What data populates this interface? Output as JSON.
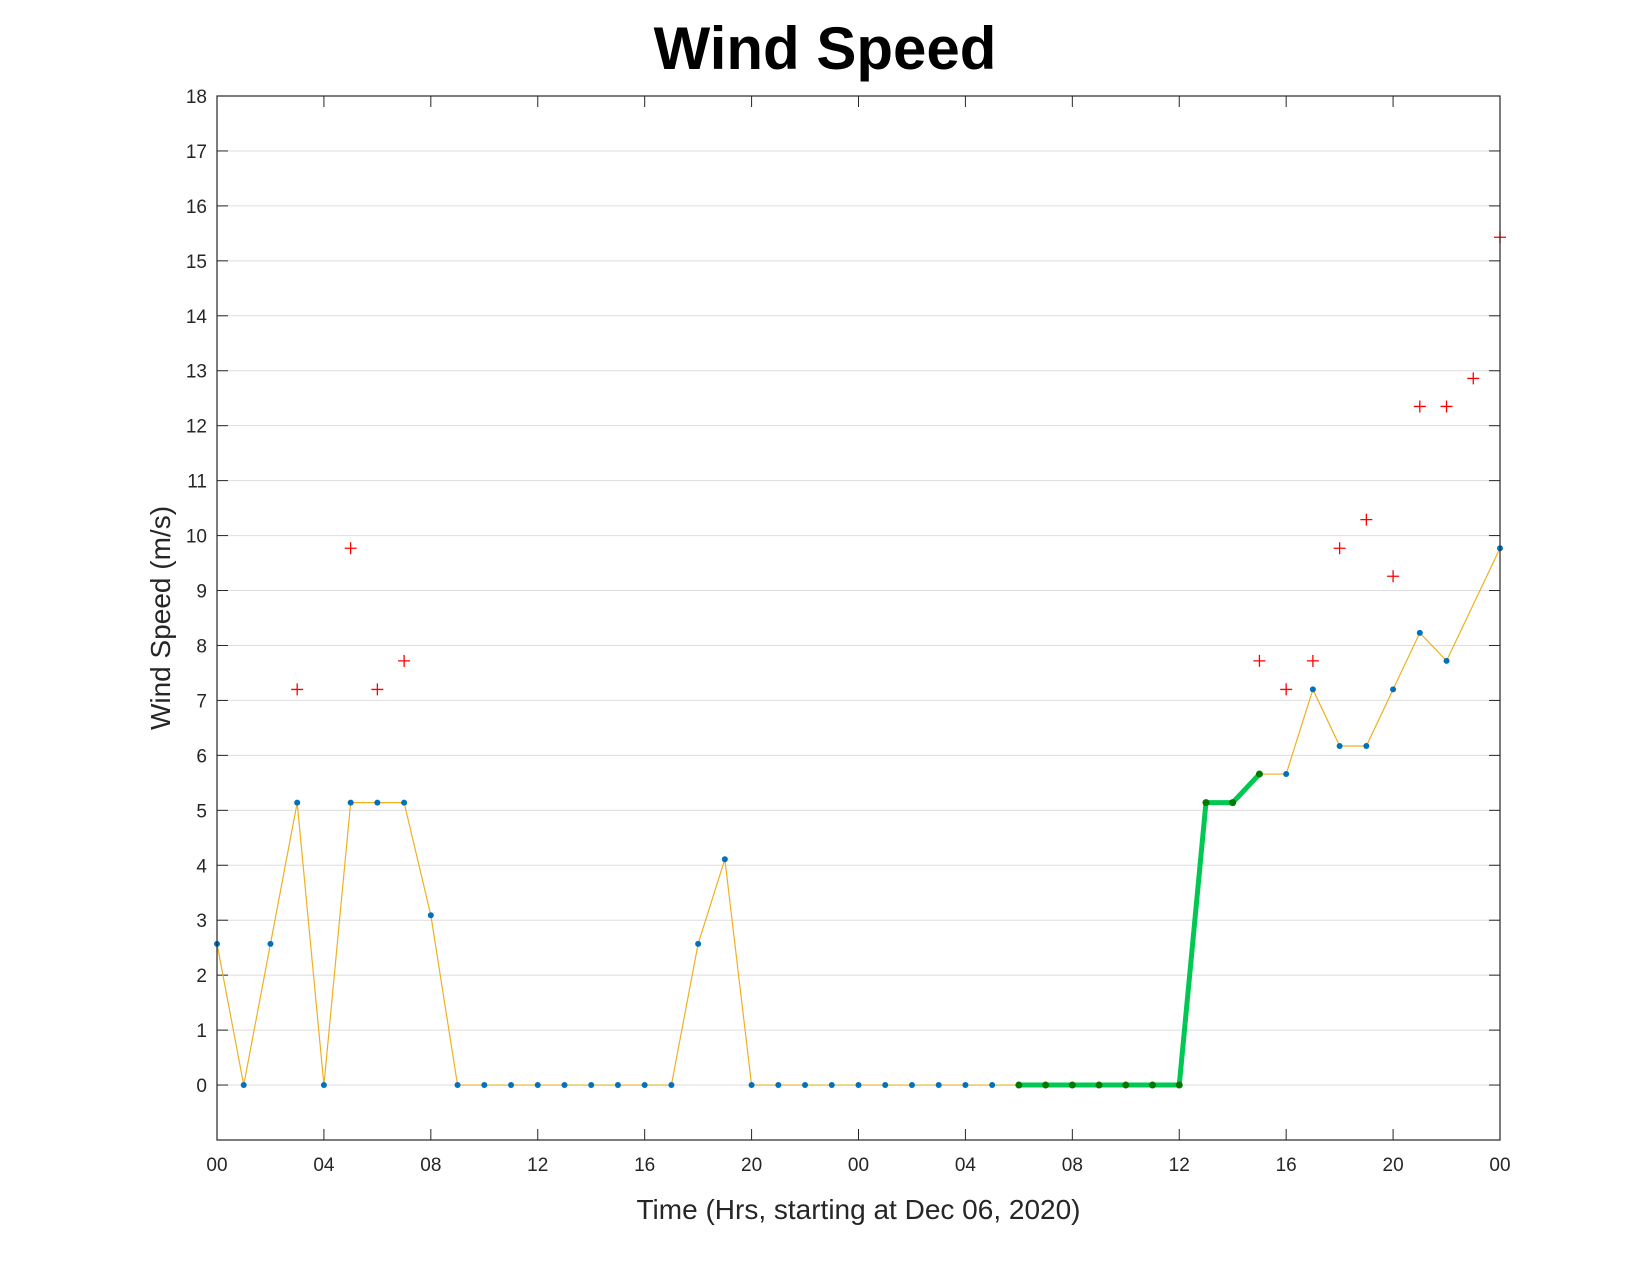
{
  "chart_data": {
    "type": "line",
    "title": "Wind Speed",
    "xlabel": "Time (Hrs, starting at Dec 06, 2020)",
    "ylabel": "Wind Speed (m/s)",
    "x_unit": "hours",
    "xlim": [
      0,
      48
    ],
    "ylim": [
      -1,
      18
    ],
    "yticks": [
      0,
      1,
      2,
      3,
      4,
      5,
      6,
      7,
      8,
      9,
      10,
      11,
      12,
      13,
      14,
      15,
      16,
      17,
      18
    ],
    "xticks": [
      0,
      4,
      8,
      12,
      16,
      20,
      24,
      28,
      32,
      36,
      40,
      44,
      48
    ],
    "xtick_labels": [
      "00",
      "04",
      "08",
      "12",
      "16",
      "20",
      "00",
      "04",
      "08",
      "12",
      "16",
      "20",
      "00"
    ],
    "grid": "horizontal",
    "colors": {
      "line": "#EDB120",
      "markers": "#0072BD",
      "highlight_line": "#00C853",
      "highlight_markers": "#007A00",
      "gust": "#FF0000"
    },
    "series": [
      {
        "style": "line-with-dots",
        "x": [
          0,
          1,
          2,
          3,
          4,
          5,
          6,
          7,
          8,
          9,
          10,
          11,
          12,
          13,
          14,
          15,
          16,
          17,
          18,
          19,
          20,
          21,
          22,
          23,
          24,
          25,
          26,
          27,
          28,
          29,
          30,
          31,
          32,
          33,
          34,
          35,
          36,
          37,
          38,
          39,
          40,
          41,
          42,
          43,
          44,
          45,
          46,
          47,
          48
        ],
        "values": [
          2.57,
          0,
          2.57,
          5.14,
          0,
          5.14,
          5.14,
          5.14,
          3.09,
          0,
          0,
          0,
          0,
          0,
          0,
          0,
          0,
          0,
          2.57,
          4.11,
          0,
          0,
          0,
          0,
          0,
          0,
          0,
          0,
          0,
          0,
          0,
          0,
          0,
          0,
          0,
          0,
          0,
          5.14,
          5.14,
          5.66,
          5.66,
          7.2,
          6.17,
          6.17,
          7.2,
          8.23,
          7.72,
          null,
          9.77
        ]
      },
      {
        "style": "highlight",
        "x": [
          30,
          31,
          32,
          33,
          34,
          35,
          36,
          37,
          38,
          39
        ],
        "values": [
          0,
          0,
          0,
          0,
          0,
          0,
          0,
          5.14,
          5.14,
          5.66
        ]
      },
      {
        "style": "plus-markers",
        "x": [
          3,
          5,
          6,
          7,
          39,
          40,
          41,
          42,
          43,
          44,
          45,
          46,
          47,
          48
        ],
        "values": [
          7.2,
          9.77,
          7.2,
          7.72,
          7.72,
          7.2,
          7.72,
          9.77,
          10.29,
          9.26,
          12.35,
          12.35,
          12.86,
          15.43
        ]
      }
    ]
  }
}
